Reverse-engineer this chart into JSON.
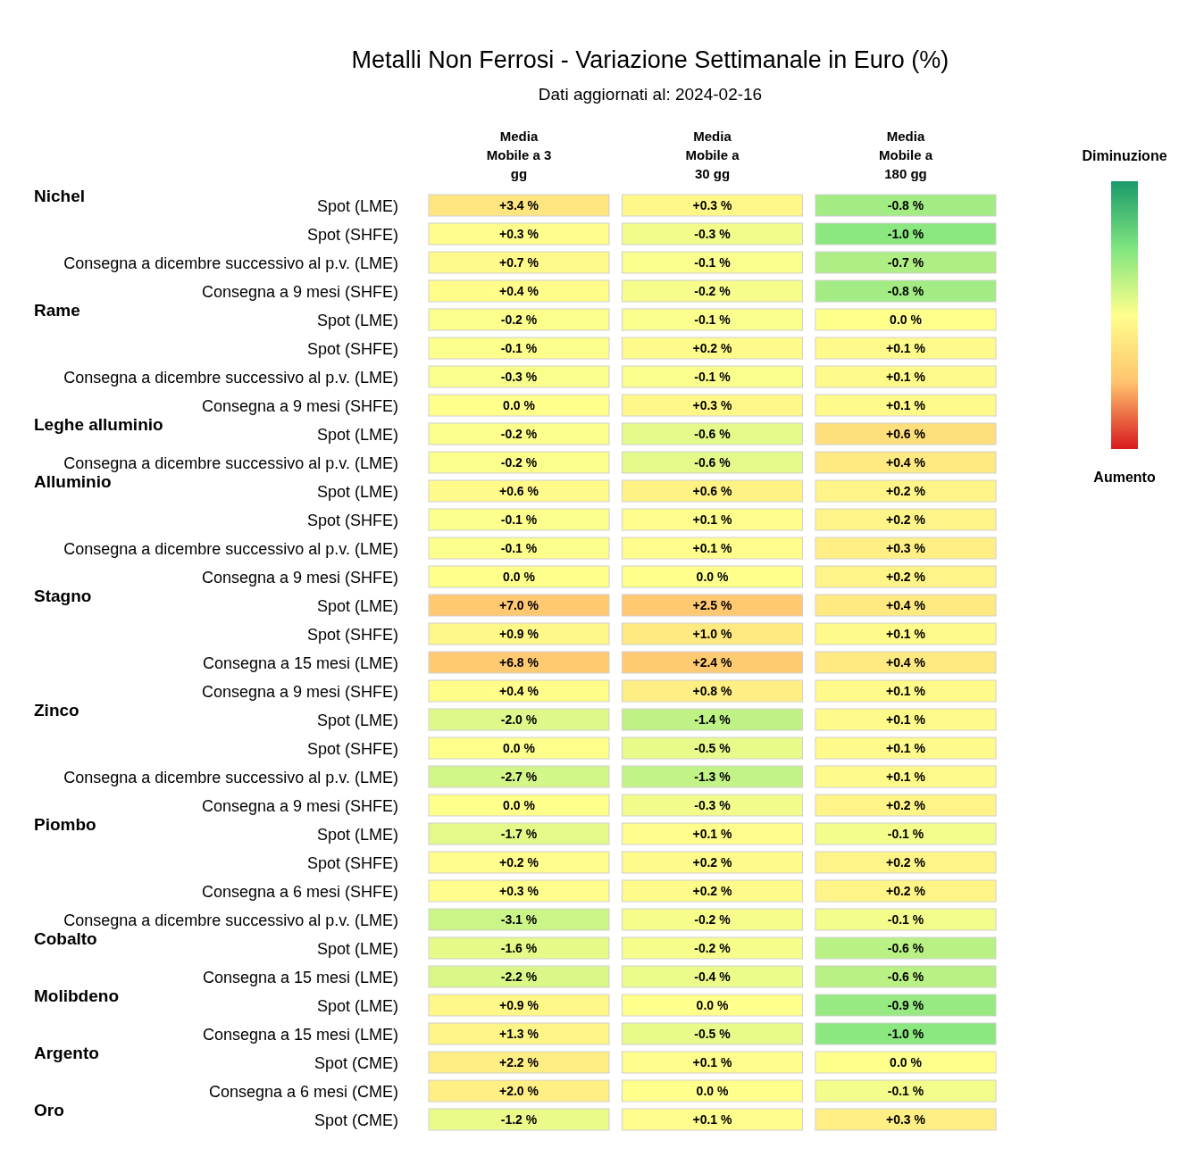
{
  "chart_data": {
    "type": "heatmap",
    "title": "Metalli Non Ferrosi - Variazione Settimanale in Euro (%)",
    "subtitle": "Dati aggiornati al: 2024-02-16",
    "annotations": [
      "Diminuzione",
      "Aumento"
    ],
    "categories": [
      "Media Mobile a 3 gg",
      "Media Mobile a 30 gg",
      "Media Mobile a 180 gg"
    ],
    "y2_categories": [
      "Nichel",
      null,
      null,
      null,
      "Rame",
      null,
      null,
      null,
      "Leghe alluminio",
      null,
      "Alluminio",
      null,
      null,
      null,
      "Stagno",
      null,
      null,
      null,
      "Zinco",
      null,
      null,
      null,
      "Piombo",
      null,
      null,
      null,
      "Cobalto",
      null,
      "Molibdeno",
      null,
      "Argento",
      null,
      "Oro"
    ],
    "y_categories": [
      "Spot (LME)",
      "Spot (SHFE)",
      "Consegna a dicembre successivo al p.v. (LME)",
      "Consegna a 9 mesi (SHFE)",
      "Spot (LME)",
      "Spot (SHFE)",
      "Consegna a dicembre successivo al p.v. (LME)",
      "Consegna a 9 mesi (SHFE)",
      "Spot (LME)",
      "Consegna a dicembre successivo al p.v. (LME)",
      "Spot (LME)",
      "Spot (SHFE)",
      "Consegna a dicembre successivo al p.v. (LME)",
      "Consegna a 9 mesi (SHFE)",
      "Spot (LME)",
      "Spot (SHFE)",
      "Consegna a 15 mesi (LME)",
      "Consegna a 9 mesi (SHFE)",
      "Spot (LME)",
      "Spot (SHFE)",
      "Consegna a dicembre successivo al p.v. (LME)",
      "Consegna a 9 mesi (SHFE)",
      "Spot (LME)",
      "Spot (SHFE)",
      "Consegna a 6 mesi (SHFE)",
      "Consegna a dicembre successivo al p.v. (LME)",
      "Spot (LME)",
      "Consegna a 15 mesi (LME)",
      "Spot (LME)",
      "Consegna a 15 mesi (LME)",
      "Spot (CME)",
      "Consegna a 6 mesi (CME)",
      "Spot (CME)"
    ],
    "cells": [
      [
        3.4,
        0.3,
        -0.8
      ],
      [
        0.3,
        -0.3,
        -1.0
      ],
      [
        0.7,
        -0.1,
        -0.7
      ],
      [
        0.4,
        -0.2,
        -0.8
      ],
      [
        -0.2,
        -0.1,
        0.0
      ],
      [
        -0.1,
        0.2,
        0.1
      ],
      [
        -0.3,
        -0.1,
        0.1
      ],
      [
        0.0,
        0.3,
        0.1
      ],
      [
        -0.2,
        -0.6,
        0.6
      ],
      [
        -0.2,
        -0.6,
        0.4
      ],
      [
        0.6,
        0.6,
        0.2
      ],
      [
        -0.1,
        0.1,
        0.2
      ],
      [
        -0.1,
        0.1,
        0.3
      ],
      [
        0.0,
        0.0,
        0.2
      ],
      [
        7.0,
        2.5,
        0.4
      ],
      [
        0.9,
        1.0,
        0.1
      ],
      [
        6.8,
        2.4,
        0.4
      ],
      [
        0.4,
        0.8,
        0.1
      ],
      [
        -2.0,
        -1.4,
        0.1
      ],
      [
        0.0,
        -0.5,
        0.1
      ],
      [
        -2.7,
        -1.3,
        0.1
      ],
      [
        0.0,
        -0.3,
        0.2
      ],
      [
        -1.7,
        0.1,
        -0.1
      ],
      [
        0.2,
        0.2,
        0.2
      ],
      [
        0.3,
        0.2,
        0.2
      ],
      [
        -3.1,
        -0.2,
        -0.1
      ],
      [
        -1.6,
        -0.2,
        -0.6
      ],
      [
        -2.2,
        -0.4,
        -0.6
      ],
      [
        0.9,
        0.0,
        -0.9
      ],
      [
        1.3,
        -0.5,
        -1.0
      ],
      [
        2.2,
        0.1,
        0.0
      ],
      [
        2.0,
        0.0,
        -0.1
      ],
      [
        -1.2,
        0.1,
        0.3
      ]
    ],
    "cell_labels": [
      [
        "+3.4 %",
        "+0.3 %",
        "-0.8 %"
      ],
      [
        "+0.3 %",
        "-0.3 %",
        "-1.0 %"
      ],
      [
        "+0.7 %",
        "-0.1 %",
        "-0.7 %"
      ],
      [
        "+0.4 %",
        "-0.2 %",
        "-0.8 %"
      ],
      [
        "-0.2 %",
        "-0.1 %",
        "0.0 %"
      ],
      [
        "-0.1 %",
        "+0.2 %",
        "+0.1 %"
      ],
      [
        "-0.3 %",
        "-0.1 %",
        "+0.1 %"
      ],
      [
        "0.0 %",
        "+0.3 %",
        "+0.1 %"
      ],
      [
        "-0.2 %",
        "-0.6 %",
        "+0.6 %"
      ],
      [
        "-0.2 %",
        "-0.6 %",
        "+0.4 %"
      ],
      [
        "+0.6 %",
        "+0.6 %",
        "+0.2 %"
      ],
      [
        "-0.1 %",
        "+0.1 %",
        "+0.2 %"
      ],
      [
        "-0.1 %",
        "+0.1 %",
        "+0.3 %"
      ],
      [
        "0.0 %",
        "0.0 %",
        "+0.2 %"
      ],
      [
        "+7.0 %",
        "+2.5 %",
        "+0.4 %"
      ],
      [
        "+0.9 %",
        "+1.0 %",
        "+0.1 %"
      ],
      [
        "+6.8 %",
        "+2.4 %",
        "+0.4 %"
      ],
      [
        "+0.4 %",
        "+0.8 %",
        "+0.1 %"
      ],
      [
        "-2.0 %",
        "-1.4 %",
        "+0.1 %"
      ],
      [
        "0.0 %",
        "-0.5 %",
        "+0.1 %"
      ],
      [
        "-2.7 %",
        "-1.3 %",
        "+0.1 %"
      ],
      [
        "0.0 %",
        "-0.3 %",
        "+0.2 %"
      ],
      [
        "-1.7 %",
        "+0.1 %",
        "-0.1 %"
      ],
      [
        "+0.2 %",
        "+0.2 %",
        "+0.2 %"
      ],
      [
        "+0.3 %",
        "+0.2 %",
        "+0.2 %"
      ],
      [
        "-3.1 %",
        "-0.2 %",
        "-0.1 %"
      ],
      [
        "-1.6 %",
        "-0.2 %",
        "-0.6 %"
      ],
      [
        "-2.2 %",
        "-0.4 %",
        "-0.6 %"
      ],
      [
        "+0.9 %",
        "0.0 %",
        "-0.9 %"
      ],
      [
        "+1.3 %",
        "-0.5 %",
        "-1.0 %"
      ],
      [
        "+2.2 %",
        "+0.1 %",
        "0.0 %"
      ],
      [
        "+2.0 %",
        "0.0 %",
        "-0.1 %"
      ],
      [
        "-1.2 %",
        "+0.1 %",
        "+0.3 %"
      ]
    ]
  }
}
